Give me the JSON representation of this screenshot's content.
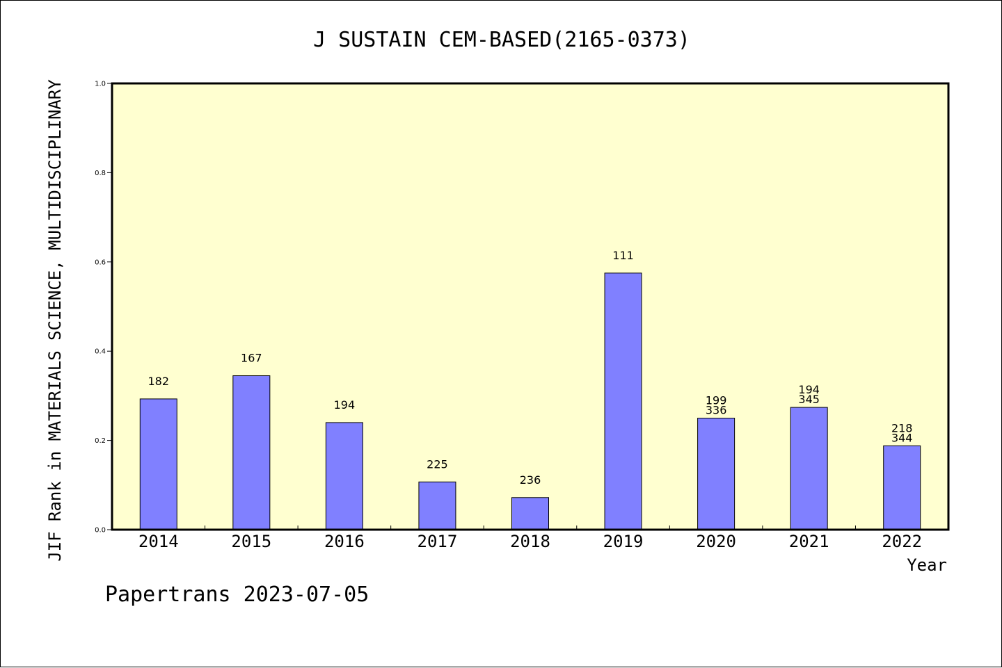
{
  "chart_data": {
    "type": "bar",
    "title": "J SUSTAIN CEM-BASED(2165-0373)",
    "xlabel": "Year",
    "ylabel": "JIF Rank in MATERIALS SCIENCE, MULTIDISCIPLINARY",
    "ylim": [
      0,
      1.0
    ],
    "yticks": [
      "0.0",
      "0.2",
      "0.4",
      "0.6",
      "0.8",
      "1.0"
    ],
    "categories": [
      "2014",
      "2015",
      "2016",
      "2017",
      "2018",
      "2019",
      "2020",
      "2021",
      "2022"
    ],
    "values": [
      0.293,
      0.345,
      0.24,
      0.107,
      0.072,
      0.575,
      0.25,
      0.274,
      0.188
    ],
    "data_labels": [
      [
        "182"
      ],
      [
        "167"
      ],
      [
        "194"
      ],
      [
        "225"
      ],
      [
        "236"
      ],
      [
        "111"
      ],
      [
        "199",
        "336"
      ],
      [
        "194",
        "345"
      ],
      [
        "218",
        "344"
      ]
    ],
    "grid": false,
    "colors": {
      "plot_background": "#ffffd0",
      "bar_fill": "#8080ff",
      "bar_stroke": "#000000"
    }
  },
  "footer": "Papertrans 2023-07-05"
}
